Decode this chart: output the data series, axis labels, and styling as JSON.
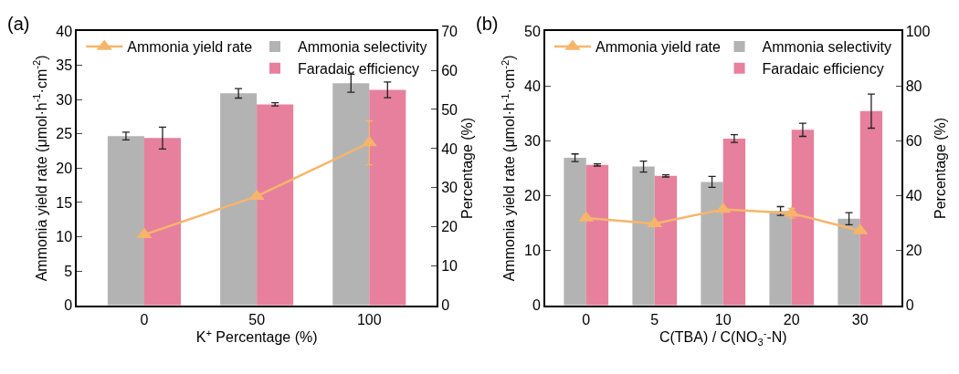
{
  "chart_data": [
    {
      "type": "bar",
      "title": "(a)",
      "categories": [
        "0",
        "50",
        "100"
      ],
      "xlabel": "K$^{+}$ Percentage (%)",
      "ylabel": "Ammonia yield rate (μmol·h$^{-1}$·cm$^{-2}$)",
      "y2label": "Percentage (%)",
      "ylim": [
        0,
        40
      ],
      "yticks": [
        0,
        5,
        10,
        15,
        20,
        25,
        30,
        35,
        40
      ],
      "y2lim": [
        0,
        70
      ],
      "y2ticks": [
        0,
        10,
        20,
        30,
        40,
        50,
        60,
        70
      ],
      "legend": "top",
      "series": [
        {
          "name": "Ammonia yield rate",
          "type": "line",
          "marker": "triangle",
          "color": "#f7b56b",
          "values": [
            10.3,
            15.9,
            23.7
          ],
          "errors": [
            null,
            null,
            3.2
          ]
        },
        {
          "name": "Ammonia selectivity",
          "axis": "y2",
          "color": "#b3b3b3",
          "values": [
            43.2,
            54.1,
            56.7
          ],
          "errors": [
            1.0,
            1.2,
            2.3
          ]
        },
        {
          "name": "Faradaic efficiency",
          "axis": "y2",
          "color": "#e6809d",
          "values": [
            42.7,
            51.3,
            55.0
          ],
          "errors": [
            2.8,
            0.4,
            2.0
          ]
        }
      ]
    },
    {
      "type": "bar",
      "title": "(b)",
      "categories": [
        "0",
        "5",
        "10",
        "20",
        "30"
      ],
      "xlabel": "C(TBA) / C(NO$_{3}$$^{-}$-N)",
      "ylabel": "Ammonia yield rate (μmol·h$^{-1}$·cm$^{-2}$)",
      "y2label": "Percentage (%)",
      "ylim": [
        0,
        50
      ],
      "yticks": [
        0,
        10,
        20,
        30,
        40,
        50
      ],
      "y2lim": [
        0,
        100
      ],
      "y2ticks": [
        0,
        20,
        40,
        60,
        80,
        100
      ],
      "legend": "top",
      "series": [
        {
          "name": "Ammonia yield rate",
          "type": "line",
          "marker": "triangle",
          "color": "#f7b56b",
          "values": [
            15.9,
            14.9,
            17.5,
            16.8,
            13.6
          ],
          "errors": [
            null,
            null,
            null,
            0.9,
            null
          ]
        },
        {
          "name": "Ammonia selectivity",
          "axis": "y2",
          "color": "#b3b3b3",
          "values": [
            53.8,
            50.6,
            45.0,
            34.4,
            31.6
          ],
          "errors": [
            1.4,
            2.0,
            2.0,
            1.6,
            2.2
          ]
        },
        {
          "name": "Faradaic efficiency",
          "axis": "y2",
          "color": "#e6809d",
          "values": [
            51.2,
            47.2,
            60.8,
            64.0,
            70.8
          ],
          "errors": [
            0.4,
            0.4,
            1.4,
            2.4,
            6.2
          ]
        }
      ]
    }
  ]
}
